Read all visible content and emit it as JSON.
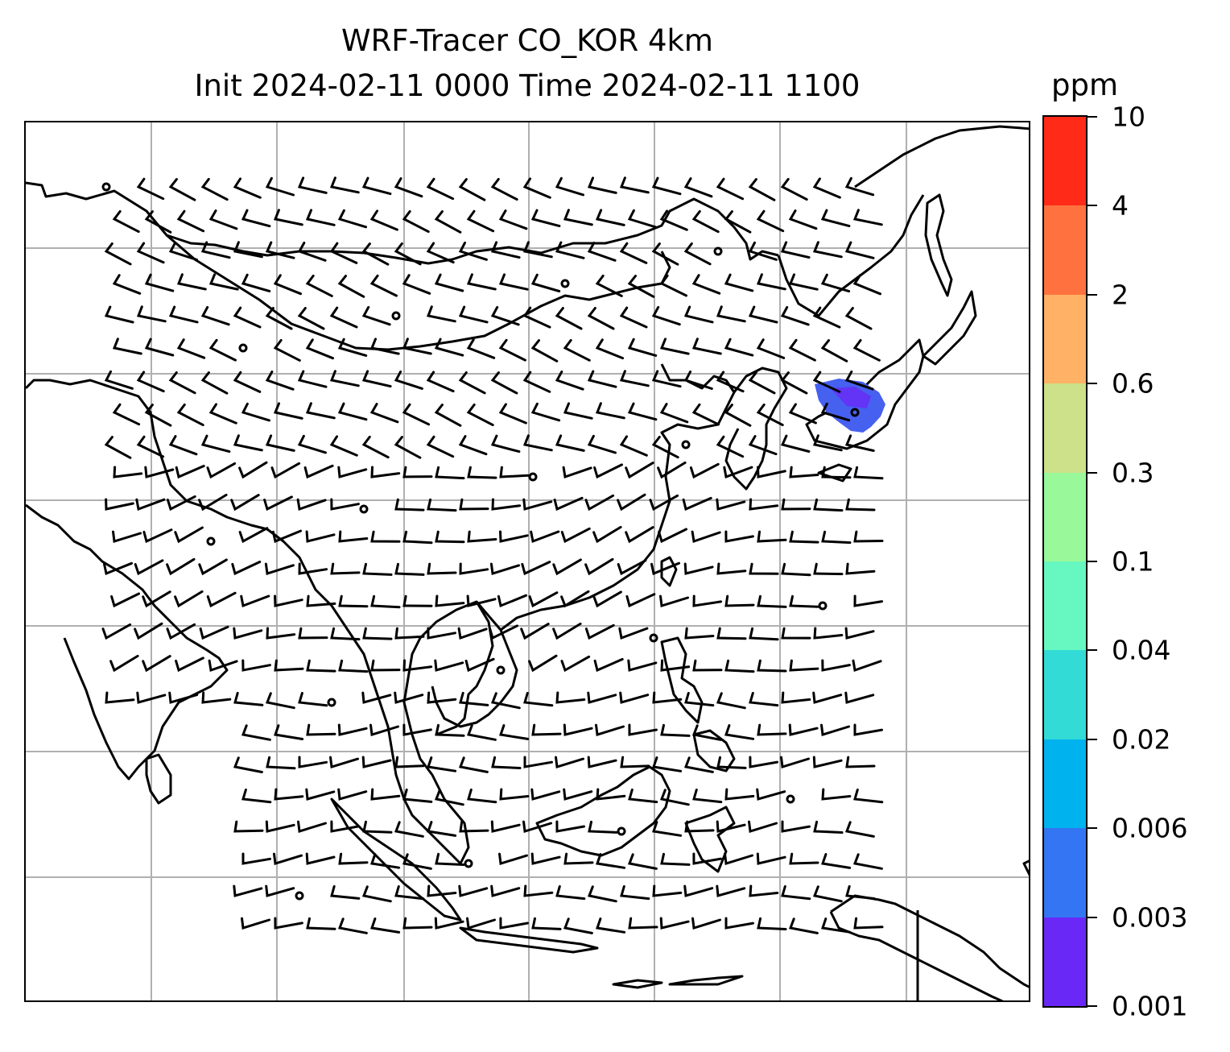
{
  "title": {
    "line1": "WRF-Tracer CO_KOR 4km",
    "line2": "Init 2024-02-11 0000 Time 2024-02-11 1100"
  },
  "colorbar": {
    "unit": "ppm",
    "levels": [
      "0.001",
      "0.003",
      "0.006",
      "0.02",
      "0.04",
      "0.1",
      "0.3",
      "0.6",
      "2",
      "4",
      "10"
    ],
    "colors": [
      "#6a28f7",
      "#3375f2",
      "#00b3ee",
      "#33dbd6",
      "#66f8c0",
      "#99f99a",
      "#cce18a",
      "#ffb265",
      "#ff7240",
      "#ff2a18"
    ]
  },
  "map": {
    "features": [
      "coastlines",
      "country-borders",
      "gridlines",
      "wind-barbs",
      "co-tracer-plume"
    ],
    "plume_color": "#4660f0",
    "gridline_color": "#b0b0b0"
  }
}
